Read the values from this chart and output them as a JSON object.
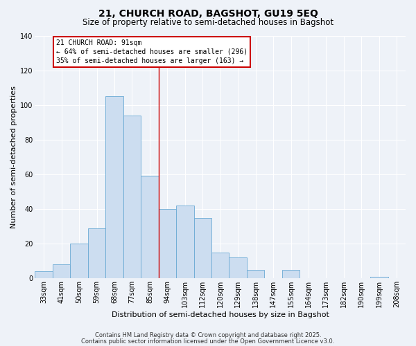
{
  "title": "21, CHURCH ROAD, BAGSHOT, GU19 5EQ",
  "subtitle": "Size of property relative to semi-detached houses in Bagshot",
  "xlabel": "Distribution of semi-detached houses by size in Bagshot",
  "ylabel": "Number of semi-detached properties",
  "bin_labels": [
    "33sqm",
    "41sqm",
    "50sqm",
    "59sqm",
    "68sqm",
    "77sqm",
    "85sqm",
    "94sqm",
    "103sqm",
    "112sqm",
    "120sqm",
    "129sqm",
    "138sqm",
    "147sqm",
    "155sqm",
    "164sqm",
    "173sqm",
    "182sqm",
    "190sqm",
    "199sqm",
    "208sqm"
  ],
  "bar_heights": [
    4,
    8,
    20,
    29,
    105,
    94,
    59,
    40,
    42,
    35,
    15,
    12,
    5,
    0,
    5,
    0,
    0,
    0,
    0,
    1,
    0
  ],
  "bar_color": "#ccddf0",
  "bar_edge_color": "#6aaad4",
  "ylim": [
    0,
    140
  ],
  "yticks": [
    0,
    20,
    40,
    60,
    80,
    100,
    120,
    140
  ],
  "vline_x": 7,
  "vline_color": "#cc0000",
  "annotation_title": "21 CHURCH ROAD: 91sqm",
  "annotation_line1": "← 64% of semi-detached houses are smaller (296)",
  "annotation_line2": "35% of semi-detached houses are larger (163) →",
  "annotation_box_color": "#cc0000",
  "footer_line1": "Contains HM Land Registry data © Crown copyright and database right 2025.",
  "footer_line2": "Contains public sector information licensed under the Open Government Licence v3.0.",
  "background_color": "#eef2f8",
  "grid_color": "#ffffff",
  "title_fontsize": 10,
  "subtitle_fontsize": 8.5,
  "axis_label_fontsize": 8,
  "tick_fontsize": 7,
  "annotation_fontsize": 7,
  "footer_fontsize": 6
}
